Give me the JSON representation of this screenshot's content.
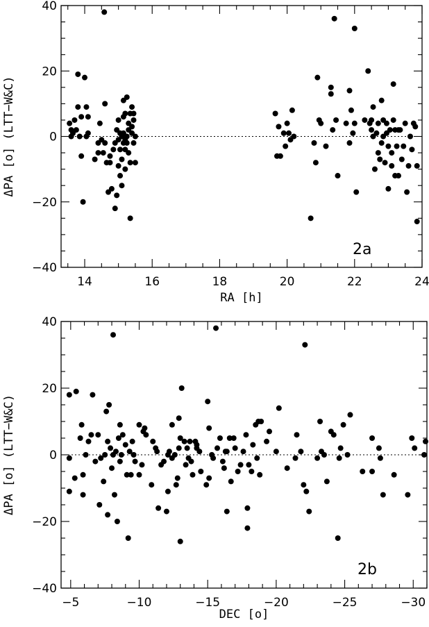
{
  "chart_data": [
    {
      "type": "scatter",
      "panel_label": "2a",
      "xlabel": "RA [h]",
      "ylabel": "ΔPA [o] (LTT−W&C)",
      "xlim": [
        13.3,
        24
      ],
      "ylim": [
        -40,
        40
      ],
      "xticks": [
        14,
        16,
        18,
        20,
        22,
        24
      ],
      "yticks": [
        -40,
        -20,
        0,
        20,
        40
      ],
      "xtick_labels": [
        "14",
        "16",
        "18",
        "20",
        "22",
        "24"
      ],
      "ytick_labels": [
        "−40",
        "−20",
        "0",
        "20",
        "40"
      ],
      "reference_line": {
        "y": 0,
        "style": "dotted"
      },
      "points": [
        [
          13.55,
          4
        ],
        [
          13.6,
          2
        ],
        [
          13.6,
          0
        ],
        [
          13.65,
          1
        ],
        [
          13.7,
          5
        ],
        [
          13.75,
          2
        ],
        [
          13.8,
          9
        ],
        [
          13.8,
          19
        ],
        [
          13.85,
          0
        ],
        [
          13.9,
          6
        ],
        [
          13.9,
          -6
        ],
        [
          14.0,
          18
        ],
        [
          14.05,
          9
        ],
        [
          14.05,
          0
        ],
        [
          13.95,
          -20
        ],
        [
          14.1,
          1
        ],
        [
          14.1,
          6
        ],
        [
          14.3,
          -7
        ],
        [
          14.4,
          -2
        ],
        [
          14.4,
          -5
        ],
        [
          14.45,
          4
        ],
        [
          14.5,
          -1
        ],
        [
          14.55,
          -5
        ],
        [
          14.6,
          -2
        ],
        [
          14.6,
          10
        ],
        [
          14.58,
          38
        ],
        [
          14.7,
          -17
        ],
        [
          14.75,
          -8
        ],
        [
          14.8,
          -16
        ],
        [
          14.85,
          -4
        ],
        [
          14.9,
          -2
        ],
        [
          14.9,
          -22
        ],
        [
          14.95,
          -18
        ],
        [
          14.95,
          2
        ],
        [
          15.0,
          -1
        ],
        [
          15.0,
          5
        ],
        [
          15.05,
          -4
        ],
        [
          15.05,
          -12
        ],
        [
          15.1,
          0
        ],
        [
          15.1,
          -7
        ],
        [
          15.1,
          -15
        ],
        [
          15.15,
          -2
        ],
        [
          15.15,
          1
        ],
        [
          15.15,
          6
        ],
        [
          15.2,
          7
        ],
        [
          15.2,
          -4
        ],
        [
          15.2,
          -10
        ],
        [
          15.25,
          12
        ],
        [
          15.25,
          -2
        ],
        [
          15.25,
          0
        ],
        [
          15.3,
          -5
        ],
        [
          15.3,
          2
        ],
        [
          15.3,
          4
        ],
        [
          15.35,
          7
        ],
        [
          15.35,
          -8
        ],
        [
          15.35,
          -25
        ],
        [
          15.4,
          9
        ],
        [
          15.4,
          1
        ],
        [
          15.45,
          5
        ],
        [
          15.45,
          -2
        ],
        [
          15.45,
          7
        ],
        [
          15.5,
          -8
        ],
        [
          15.5,
          0
        ],
        [
          15.15,
          11
        ],
        [
          15.05,
          1
        ],
        [
          14.75,
          -6
        ],
        [
          14.65,
          -8
        ],
        [
          15.0,
          -9
        ],
        [
          15.2,
          -1
        ],
        [
          15.4,
          3
        ],
        [
          19.65,
          7
        ],
        [
          19.7,
          -6
        ],
        [
          19.75,
          3
        ],
        [
          19.8,
          -6
        ],
        [
          19.9,
          1
        ],
        [
          19.95,
          -3
        ],
        [
          20.0,
          4
        ],
        [
          20.05,
          1
        ],
        [
          20.1,
          -1
        ],
        [
          20.15,
          8
        ],
        [
          20.2,
          0
        ],
        [
          20.7,
          -25
        ],
        [
          20.8,
          -2
        ],
        [
          20.85,
          -8
        ],
        [
          20.9,
          18
        ],
        [
          20.95,
          5
        ],
        [
          21.0,
          4
        ],
        [
          21.15,
          -3
        ],
        [
          21.3,
          15
        ],
        [
          21.3,
          13
        ],
        [
          21.35,
          2
        ],
        [
          21.4,
          36
        ],
        [
          21.45,
          5
        ],
        [
          21.5,
          -12
        ],
        [
          21.75,
          4
        ],
        [
          21.85,
          -2
        ],
        [
          21.85,
          14
        ],
        [
          21.9,
          8
        ],
        [
          21.95,
          1
        ],
        [
          22.0,
          4
        ],
        [
          22.0,
          33
        ],
        [
          22.05,
          -17
        ],
        [
          22.3,
          5
        ],
        [
          22.4,
          20
        ],
        [
          22.45,
          4
        ],
        [
          22.5,
          5
        ],
        [
          22.5,
          2
        ],
        [
          22.55,
          0
        ],
        [
          22.55,
          9
        ],
        [
          22.6,
          -10
        ],
        [
          22.65,
          1
        ],
        [
          22.7,
          4
        ],
        [
          22.75,
          -7
        ],
        [
          22.8,
          -2
        ],
        [
          22.8,
          11
        ],
        [
          22.85,
          5
        ],
        [
          22.9,
          -8
        ],
        [
          22.95,
          1
        ],
        [
          23.0,
          -3
        ],
        [
          23.0,
          -16
        ],
        [
          23.05,
          2
        ],
        [
          23.1,
          -9
        ],
        [
          23.15,
          5
        ],
        [
          23.15,
          16
        ],
        [
          23.2,
          2
        ],
        [
          23.2,
          -12
        ],
        [
          23.25,
          -3
        ],
        [
          23.3,
          -12
        ],
        [
          23.35,
          2
        ],
        [
          23.4,
          -7
        ],
        [
          23.45,
          -3
        ],
        [
          23.55,
          -17
        ],
        [
          23.6,
          -9
        ],
        [
          23.65,
          0
        ],
        [
          23.7,
          -4
        ],
        [
          23.75,
          4
        ],
        [
          23.8,
          3
        ],
        [
          23.85,
          -9
        ],
        [
          23.85,
          -26
        ],
        [
          23.3,
          2
        ],
        [
          22.95,
          4
        ],
        [
          23.5,
          4
        ],
        [
          22.85,
          0
        ],
        [
          23.1,
          -5
        ],
        [
          22.7,
          -5
        ]
      ]
    },
    {
      "type": "scatter",
      "panel_label": "2b",
      "xlabel": "DEC [o]",
      "ylabel": "ΔPA [o] (LTT−W&C)",
      "xlim": [
        -4.3,
        -31
      ],
      "ylim": [
        -40,
        40
      ],
      "xticks": [
        -5,
        -10,
        -15,
        -20,
        -25,
        -30
      ],
      "yticks": [
        -40,
        -20,
        0,
        20,
        40
      ],
      "xtick_labels": [
        "−5",
        "−10",
        "−15",
        "−20",
        "−25",
        "−30"
      ],
      "ytick_labels": [
        "−40",
        "−20",
        "0",
        "20",
        "40"
      ],
      "reference_line": {
        "y": 0,
        "style": "dotted"
      },
      "points": [
        [
          -4.9,
          18
        ],
        [
          -4.9,
          -1
        ],
        [
          -4.9,
          -11
        ],
        [
          -5.3,
          -7
        ],
        [
          -5.4,
          19
        ],
        [
          -5.7,
          5
        ],
        [
          -5.8,
          9
        ],
        [
          -5.9,
          -6
        ],
        [
          -5.9,
          -12
        ],
        [
          -6.1,
          0
        ],
        [
          -6.3,
          4
        ],
        [
          -6.5,
          6
        ],
        [
          -6.6,
          18
        ],
        [
          -6.8,
          -2
        ],
        [
          -7.0,
          6
        ],
        [
          -7.1,
          -15
        ],
        [
          -7.2,
          -1
        ],
        [
          -7.4,
          -8
        ],
        [
          -7.5,
          0
        ],
        [
          -7.6,
          13
        ],
        [
          -7.7,
          -18
        ],
        [
          -7.7,
          4
        ],
        [
          -7.8,
          15
        ],
        [
          -7.9,
          2
        ],
        [
          -8.0,
          -4
        ],
        [
          -8.1,
          36
        ],
        [
          -8.1,
          0
        ],
        [
          -8.2,
          -12
        ],
        [
          -8.3,
          1
        ],
        [
          -8.4,
          -20
        ],
        [
          -8.5,
          5
        ],
        [
          -8.6,
          9
        ],
        [
          -8.6,
          -2
        ],
        [
          -8.7,
          0
        ],
        [
          -8.8,
          6
        ],
        [
          -9.0,
          3
        ],
        [
          -9.1,
          -6
        ],
        [
          -9.2,
          -25
        ],
        [
          -9.3,
          1
        ],
        [
          -9.4,
          -6
        ],
        [
          -9.5,
          4
        ],
        [
          -9.6,
          0
        ],
        [
          -9.7,
          -2
        ],
        [
          -10.0,
          9
        ],
        [
          -10.0,
          -6
        ],
        [
          -10.2,
          -3
        ],
        [
          -10.3,
          7
        ],
        [
          -10.4,
          8
        ],
        [
          -10.5,
          6
        ],
        [
          -10.9,
          -9
        ],
        [
          -11.0,
          4
        ],
        [
          -11.2,
          2
        ],
        [
          -11.3,
          1
        ],
        [
          -11.4,
          -16
        ],
        [
          -11.6,
          -3
        ],
        [
          -11.8,
          -2
        ],
        [
          -12.0,
          -17
        ],
        [
          -12.1,
          -11
        ],
        [
          -12.1,
          0
        ],
        [
          -12.2,
          1
        ],
        [
          -12.4,
          9
        ],
        [
          -12.4,
          -1
        ],
        [
          -12.6,
          0
        ],
        [
          -12.7,
          -9
        ],
        [
          -12.8,
          -7
        ],
        [
          -12.9,
          11
        ],
        [
          -12.9,
          2
        ],
        [
          -13.0,
          5
        ],
        [
          -13.0,
          -26
        ],
        [
          -13.1,
          20
        ],
        [
          -13.3,
          4
        ],
        [
          -13.4,
          -3
        ],
        [
          -13.5,
          2
        ],
        [
          -13.6,
          -1
        ],
        [
          -13.7,
          4
        ],
        [
          -13.8,
          -2
        ],
        [
          -13.9,
          -6
        ],
        [
          -14.1,
          4
        ],
        [
          -14.2,
          2
        ],
        [
          -14.2,
          3
        ],
        [
          -14.4,
          1
        ],
        [
          -14.5,
          -5
        ],
        [
          -14.9,
          -9
        ],
        [
          -15.0,
          16
        ],
        [
          -15.1,
          -7
        ],
        [
          -15.1,
          8
        ],
        [
          -15.3,
          0
        ],
        [
          -15.4,
          -1
        ],
        [
          -15.6,
          38
        ],
        [
          -15.7,
          2
        ],
        [
          -15.9,
          5
        ],
        [
          -16.1,
          -2
        ],
        [
          -16.2,
          -4
        ],
        [
          -16.3,
          1
        ],
        [
          -16.4,
          1
        ],
        [
          -16.4,
          -17
        ],
        [
          -16.6,
          5
        ],
        [
          -16.7,
          -8
        ],
        [
          -16.9,
          5
        ],
        [
          -17.0,
          2
        ],
        [
          -17.2,
          -5
        ],
        [
          -17.4,
          -3
        ],
        [
          -17.6,
          1
        ],
        [
          -17.8,
          6
        ],
        [
          -17.9,
          -22
        ],
        [
          -17.9,
          -16
        ],
        [
          -18.0,
          -3
        ],
        [
          -18.2,
          -5
        ],
        [
          -18.3,
          3
        ],
        [
          -18.5,
          9
        ],
        [
          -18.6,
          -1
        ],
        [
          -18.7,
          10
        ],
        [
          -18.8,
          -6
        ],
        [
          -18.9,
          10
        ],
        [
          -19.3,
          4
        ],
        [
          -19.5,
          7
        ],
        [
          -20.0,
          1
        ],
        [
          -20.2,
          14
        ],
        [
          -20.8,
          -4
        ],
        [
          -21.4,
          -1
        ],
        [
          -21.5,
          6
        ],
        [
          -21.8,
          1
        ],
        [
          -22.0,
          -9
        ],
        [
          -22.1,
          33
        ],
        [
          -22.2,
          -11
        ],
        [
          -22.4,
          -17
        ],
        [
          -23.0,
          -1
        ],
        [
          -23.2,
          10
        ],
        [
          -23.3,
          1
        ],
        [
          -23.5,
          0
        ],
        [
          -23.7,
          -8
        ],
        [
          -24.0,
          7
        ],
        [
          -24.2,
          6
        ],
        [
          -24.5,
          -25
        ],
        [
          -24.6,
          -1
        ],
        [
          -24.7,
          2
        ],
        [
          -24.9,
          9
        ],
        [
          -25.2,
          0
        ],
        [
          -25.4,
          12
        ],
        [
          -26.3,
          -5
        ],
        [
          -27.0,
          5
        ],
        [
          -27.0,
          -5
        ],
        [
          -27.5,
          2
        ],
        [
          -27.6,
          -1
        ],
        [
          -27.8,
          -12
        ],
        [
          -28.6,
          -6
        ],
        [
          -29.6,
          -12
        ],
        [
          -29.9,
          5
        ],
        [
          -30.1,
          2
        ],
        [
          -30.9,
          4
        ],
        [
          -30.8,
          0
        ]
      ]
    }
  ]
}
